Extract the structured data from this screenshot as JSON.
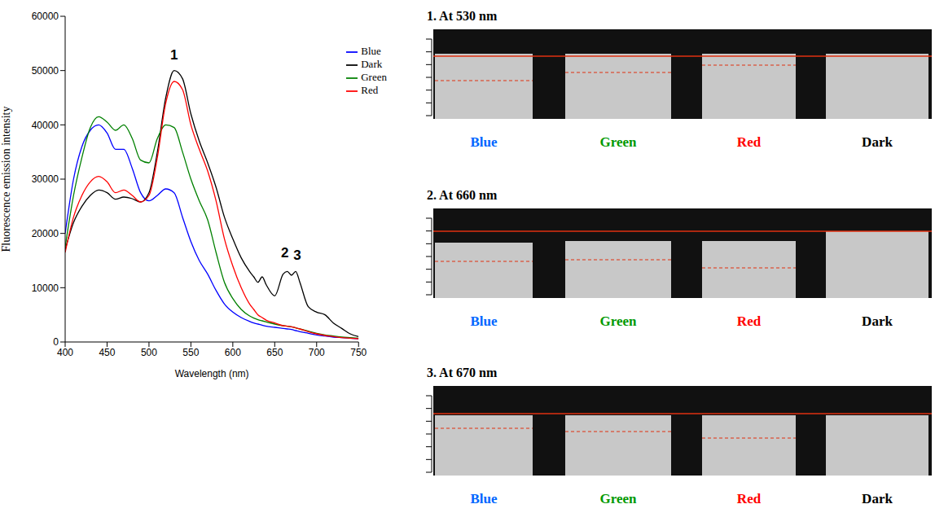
{
  "chart_data": {
    "type": "line",
    "x_label": "Wavelength (nm)",
    "y_label": "Fluorescence emission intensity",
    "xlim": [
      400,
      750
    ],
    "xticks": [
      400,
      450,
      500,
      550,
      600,
      650,
      700,
      750
    ],
    "ylim": [
      0,
      60000
    ],
    "yticks": [
      0,
      10000,
      20000,
      30000,
      40000,
      50000,
      60000
    ],
    "grid": false,
    "legend": "upper right",
    "x": [
      400,
      410,
      420,
      430,
      440,
      450,
      460,
      470,
      480,
      490,
      500,
      510,
      520,
      530,
      540,
      550,
      560,
      570,
      580,
      590,
      600,
      610,
      620,
      625,
      630,
      635,
      640,
      650,
      660,
      665,
      670,
      675,
      680,
      690,
      700,
      710,
      720,
      730,
      740,
      750
    ],
    "series": [
      {
        "name": "Blue",
        "color": "#0000ff",
        "values": [
          20000,
          30000,
          36000,
          39000,
          40000,
          38500,
          35500,
          35500,
          32000,
          27500,
          26000,
          27000,
          28200,
          27500,
          23000,
          18500,
          15000,
          12500,
          9500,
          7000,
          5500,
          4500,
          3800,
          3500,
          3300,
          3100,
          2900,
          2700,
          2500,
          2400,
          2300,
          2100,
          1900,
          1600,
          1300,
          1100,
          900,
          800,
          700,
          600
        ]
      },
      {
        "name": "Dark",
        "color": "#000000",
        "values": [
          17000,
          22000,
          25000,
          27000,
          28000,
          27500,
          26300,
          26700,
          26400,
          25800,
          27500,
          35000,
          45000,
          50000,
          48500,
          42000,
          37000,
          33000,
          28500,
          23000,
          19000,
          15500,
          13000,
          12000,
          11000,
          12000,
          10500,
          8500,
          12500,
          13000,
          12300,
          13000,
          11000,
          6500,
          5500,
          5000,
          3500,
          2500,
          1500,
          1000
        ]
      },
      {
        "name": "Green",
        "color": "#008000",
        "values": [
          17500,
          27000,
          34000,
          39500,
          41500,
          40500,
          39000,
          40000,
          37500,
          33500,
          33000,
          37500,
          40000,
          39500,
          35000,
          30000,
          26000,
          22500,
          16500,
          11000,
          8000,
          6000,
          4800,
          4400,
          4100,
          3900,
          3700,
          3300,
          3000,
          2900,
          2800,
          2600,
          2400,
          2000,
          1600,
          1300,
          1100,
          900,
          800,
          700
        ]
      },
      {
        "name": "Red",
        "color": "#ff0000",
        "values": [
          16500,
          23000,
          27000,
          29500,
          30500,
          29500,
          27500,
          28000,
          27000,
          25800,
          27000,
          34000,
          44000,
          48000,
          46500,
          40000,
          35500,
          31500,
          26000,
          19000,
          14000,
          10000,
          7000,
          6000,
          5000,
          4500,
          4000,
          3500,
          3000,
          2900,
          2800,
          2600,
          2400,
          1900,
          1500,
          1200,
          1000,
          800,
          700,
          600
        ]
      }
    ],
    "annotations": [
      {
        "text": "1",
        "x": 530,
        "y": 53000
      },
      {
        "text": "2",
        "x": 662,
        "y": 16500
      },
      {
        "text": "3",
        "x": 677,
        "y": 16000
      }
    ]
  },
  "panels": [
    {
      "title": "1. At 530 nm",
      "labels": [
        {
          "text": "Blue",
          "color": "#0066ff"
        },
        {
          "text": "Green",
          "color": "#009900"
        },
        {
          "text": "Red",
          "color": "#ff0000"
        },
        {
          "text": "Dark",
          "color": "#000000"
        }
      ]
    },
    {
      "title": "2. At 660 nm",
      "labels": [
        {
          "text": "Blue",
          "color": "#0066ff"
        },
        {
          "text": "Green",
          "color": "#009900"
        },
        {
          "text": "Red",
          "color": "#ff0000"
        },
        {
          "text": "Dark",
          "color": "#000000"
        }
      ]
    },
    {
      "title": "3. At 670 nm",
      "labels": [
        {
          "text": "Blue",
          "color": "#0066ff"
        },
        {
          "text": "Green",
          "color": "#009900"
        },
        {
          "text": "Red",
          "color": "#ff0000"
        },
        {
          "text": "Dark",
          "color": "#000000"
        }
      ]
    }
  ]
}
